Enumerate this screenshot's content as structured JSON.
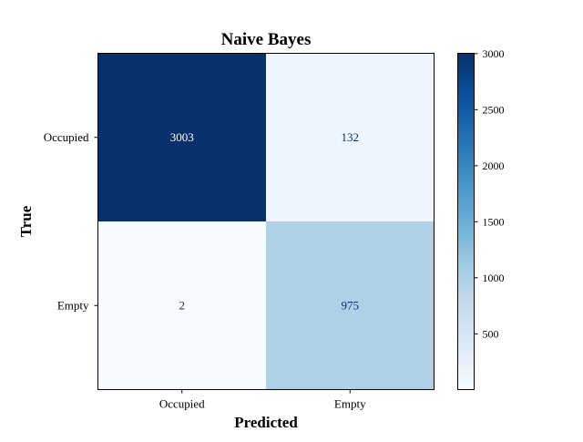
{
  "chart_data": {
    "type": "heatmap",
    "title": "Naive Bayes",
    "xlabel": "Predicted",
    "ylabel": "True",
    "x_categories": [
      "Occupied",
      "Empty"
    ],
    "y_categories": [
      "Occupied",
      "Empty"
    ],
    "values": [
      [
        3003,
        132
      ],
      [
        2,
        975
      ]
    ],
    "colormap": "Blues",
    "colorbar": {
      "range": [
        2,
        3003
      ],
      "ticks": [
        500,
        1000,
        1500,
        2000,
        2500,
        3000
      ],
      "position": "right"
    },
    "colors": {
      "low": "#f7fbff",
      "high": "#08306b",
      "text_dark": "#08306b",
      "text_light": "#ffffff"
    }
  }
}
